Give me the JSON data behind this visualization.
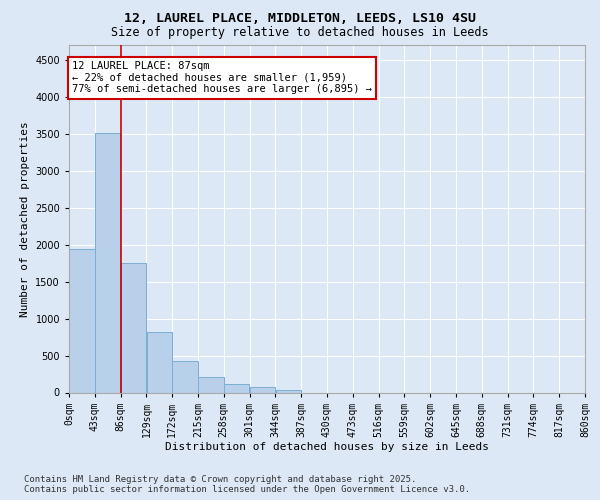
{
  "title_line1": "12, LAUREL PLACE, MIDDLETON, LEEDS, LS10 4SU",
  "title_line2": "Size of property relative to detached houses in Leeds",
  "xlabel": "Distribution of detached houses by size in Leeds",
  "ylabel": "Number of detached properties",
  "bin_edges": [
    0,
    43,
    86,
    129,
    172,
    215,
    258,
    301,
    344,
    387,
    430,
    473,
    516,
    559,
    602,
    645,
    688,
    731,
    774,
    817,
    860
  ],
  "bar_heights": [
    1940,
    3510,
    1750,
    820,
    420,
    210,
    120,
    70,
    40,
    0,
    0,
    0,
    0,
    0,
    0,
    0,
    0,
    0,
    0,
    0
  ],
  "bar_color": "#b8d0ea",
  "bar_edgecolor": "#7aaed4",
  "property_size": 87,
  "vline_color": "#cc0000",
  "annotation_text": "12 LAUREL PLACE: 87sqm\n← 22% of detached houses are smaller (1,959)\n77% of semi-detached houses are larger (6,895) →",
  "annotation_box_edgecolor": "#cc0000",
  "annotation_box_facecolor": "#ffffff",
  "ylim": [
    0,
    4700
  ],
  "yticks": [
    0,
    500,
    1000,
    1500,
    2000,
    2500,
    3000,
    3500,
    4000,
    4500
  ],
  "bg_color": "#dce8f5",
  "plot_bg_color": "#dce8f5",
  "footer_line1": "Contains HM Land Registry data © Crown copyright and database right 2025.",
  "footer_line2": "Contains public sector information licensed under the Open Government Licence v3.0.",
  "title_fontsize": 9.5,
  "subtitle_fontsize": 8.5,
  "axis_label_fontsize": 8,
  "tick_fontsize": 7,
  "annotation_fontsize": 7.5,
  "footer_fontsize": 6.5
}
